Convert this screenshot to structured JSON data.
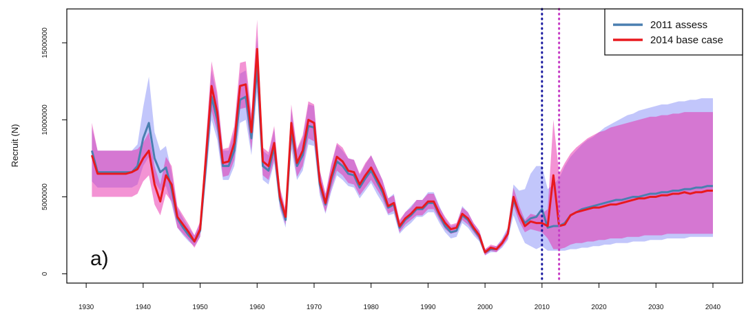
{
  "chart_data": {
    "type": "line-ribbon",
    "y_label": "Recruit (N)",
    "annotation": "a)",
    "x": [
      1931,
      1932,
      1933,
      1934,
      1935,
      1936,
      1937,
      1938,
      1939,
      1940,
      1941,
      1942,
      1943,
      1944,
      1945,
      1946,
      1947,
      1948,
      1949,
      1950,
      1951,
      1952,
      1953,
      1954,
      1955,
      1956,
      1957,
      1958,
      1959,
      1960,
      1961,
      1962,
      1963,
      1964,
      1965,
      1966,
      1967,
      1968,
      1969,
      1970,
      1971,
      1972,
      1973,
      1974,
      1975,
      1976,
      1977,
      1978,
      1979,
      1980,
      1981,
      1982,
      1983,
      1984,
      1985,
      1986,
      1987,
      1988,
      1989,
      1990,
      1991,
      1992,
      1993,
      1994,
      1995,
      1996,
      1997,
      1998,
      1999,
      2000,
      2001,
      2002,
      2003,
      2004,
      2005,
      2006,
      2007,
      2008,
      2009,
      2010,
      2011,
      2012,
      2013,
      2014,
      2015,
      2016,
      2017,
      2018,
      2019,
      2020,
      2021,
      2022,
      2023,
      2024,
      2025,
      2026,
      2027,
      2028,
      2029,
      2030,
      2031,
      2032,
      2033,
      2034,
      2035,
      2036,
      2037,
      2038,
      2039,
      2040
    ],
    "series": [
      {
        "name": "2011 assess",
        "color": "#4a7fb0",
        "ribbon_color": "rgba(110,120,245,0.42)",
        "values": [
          8000000.0,
          6600000.0,
          6600000.0,
          6600000.0,
          6600000.0,
          6600000.0,
          6600000.0,
          6600000.0,
          7000000.0,
          8800000.0,
          9800000.0,
          7500000.0,
          6600000.0,
          6900000.0,
          5500000.0,
          3600000.0,
          3000000.0,
          2500000.0,
          2100000.0,
          2800000.0,
          7000000.0,
          11500000.0,
          10000000.0,
          7000000.0,
          7000000.0,
          8000000.0,
          11300000.0,
          11500000.0,
          8800000.0,
          13500000.0,
          7000000.0,
          6700000.0,
          8200000.0,
          4800000.0,
          3500000.0,
          9300000.0,
          7000000.0,
          7700000.0,
          9600000.0,
          9500000.0,
          5800000.0,
          4500000.0,
          6100000.0,
          7300000.0,
          7000000.0,
          6500000.0,
          6400000.0,
          5600000.0,
          6200000.0,
          6700000.0,
          6000000.0,
          5300000.0,
          4300000.0,
          4500000.0,
          3000000.0,
          3500000.0,
          3800000.0,
          4200000.0,
          4200000.0,
          4600000.0,
          4600000.0,
          3800000.0,
          3100000.0,
          2700000.0,
          2800000.0,
          3800000.0,
          3500000.0,
          2900000.0,
          2400000.0,
          1400000.0,
          1600000.0,
          1600000.0,
          2000000.0,
          2600000.0,
          4800000.0,
          3900000.0,
          3300000.0,
          3600000.0,
          3700000.0,
          4200000.0,
          3000000.0,
          3100000.0,
          3100000.0,
          3300000.0,
          3800000.0,
          4000000.0,
          4200000.0,
          4300000.0,
          4400000.0,
          4500000.0,
          4600000.0,
          4700000.0,
          4800000.0,
          4800000.0,
          4900000.0,
          5000000.0,
          5000000.0,
          5100000.0,
          5200000.0,
          5200000.0,
          5300000.0,
          5300000.0,
          5400000.0,
          5400000.0,
          5500000.0,
          5500000.0,
          5600000.0,
          5600000.0,
          5700000.0,
          5700000.0
        ],
        "lower": [
          6000000.0,
          5600000.0,
          5600000.0,
          5600000.0,
          5600000.0,
          5600000.0,
          5600000.0,
          5600000.0,
          5800000.0,
          7000000.0,
          7600000.0,
          6000000.0,
          5400000.0,
          5700000.0,
          4500000.0,
          3000000.0,
          2500000.0,
          2100000.0,
          1800000.0,
          2400000.0,
          6000000.0,
          10000000.0,
          8700000.0,
          6100000.0,
          6100000.0,
          7000000.0,
          9800000.0,
          10000000.0,
          7700000.0,
          11800000.0,
          6100000.0,
          5800000.0,
          7200000.0,
          4200000.0,
          3000000.0,
          8100000.0,
          6100000.0,
          6700000.0,
          8400000.0,
          8300000.0,
          5100000.0,
          3900000.0,
          5300000.0,
          6400000.0,
          6100000.0,
          5700000.0,
          5600000.0,
          4900000.0,
          5400000.0,
          5900000.0,
          5200000.0,
          4600000.0,
          3800000.0,
          3900000.0,
          2600000.0,
          3000000.0,
          3300000.0,
          3700000.0,
          3700000.0,
          4000000.0,
          4000000.0,
          3300000.0,
          2700000.0,
          2300000.0,
          2400000.0,
          3300000.0,
          3000000.0,
          2500000.0,
          2100000.0,
          1200000.0,
          1400000.0,
          1400000.0,
          1700000.0,
          2200000.0,
          3800000.0,
          2800000.0,
          2000000.0,
          1800000.0,
          1600000.0,
          1800000.0,
          1500000.0,
          1500000.0,
          1500000.0,
          1500000.0,
          1600000.0,
          1600000.0,
          1700000.0,
          1700000.0,
          1800000.0,
          1800000.0,
          1900000.0,
          1900000.0,
          2000000.0,
          2000000.0,
          2000000.0,
          2100000.0,
          2100000.0,
          2100000.0,
          2200000.0,
          2200000.0,
          2200000.0,
          2300000.0,
          2300000.0,
          2300000.0,
          2300000.0,
          2400000.0,
          2400000.0,
          2400000.0,
          2400000.0,
          2400000.0
        ],
        "upper": [
          9500000.0,
          8000000.0,
          8000000.0,
          8000000.0,
          8000000.0,
          8000000.0,
          8000000.0,
          8000000.0,
          8400000.0,
          10800000.0,
          12800000.0,
          9200000.0,
          8000000.0,
          8300000.0,
          6600000.0,
          4300000.0,
          3600000.0,
          3000000.0,
          2500000.0,
          3300000.0,
          8100000.0,
          13200000.0,
          11500000.0,
          8000000.0,
          8000000.0,
          9200000.0,
          13000000.0,
          13200000.0,
          10100000.0,
          15500000.0,
          8000000.0,
          7700000.0,
          9400000.0,
          5500000.0,
          4000000.0,
          10700000.0,
          8000000.0,
          8800000.0,
          11000000.0,
          10900000.0,
          6700000.0,
          5200000.0,
          7000000.0,
          8400000.0,
          8000000.0,
          7500000.0,
          7400000.0,
          6400000.0,
          7100000.0,
          7700000.0,
          6900000.0,
          6100000.0,
          4900000.0,
          5200000.0,
          3400000.0,
          4000000.0,
          4400000.0,
          4800000.0,
          4800000.0,
          5300000.0,
          5300000.0,
          4400000.0,
          3600000.0,
          3100000.0,
          3200000.0,
          4400000.0,
          4000000.0,
          3300000.0,
          2800000.0,
          1600000.0,
          1800000.0,
          1800000.0,
          2300000.0,
          3000000.0,
          5800000.0,
          5400000.0,
          5500000.0,
          6500000.0,
          7000000.0,
          7000000.0,
          5500000.0,
          5800000.0,
          6200000.0,
          7000000.0,
          7600000.0,
          8000000.0,
          8400000.0,
          8700000.0,
          8900000.0,
          9200000.0,
          9500000.0,
          9700000.0,
          9900000.0,
          10100000.0,
          10300000.0,
          10400000.0,
          10600000.0,
          10700000.0,
          10800000.0,
          10900000.0,
          11000000.0,
          11000000.0,
          11100000.0,
          11200000.0,
          11200000.0,
          11300000.0,
          11300000.0,
          11400000.0,
          11400000.0,
          11400000.0
        ]
      },
      {
        "name": "2014 base case",
        "color": "#e8191e",
        "ribbon_color": "rgba(232,40,170,0.5)",
        "values": [
          7700000.0,
          6500000.0,
          6500000.0,
          6500000.0,
          6500000.0,
          6500000.0,
          6500000.0,
          6600000.0,
          6800000.0,
          7500000.0,
          8000000.0,
          5800000.0,
          4700000.0,
          6400000.0,
          5800000.0,
          3700000.0,
          3200000.0,
          2700000.0,
          2100000.0,
          2900000.0,
          7500000.0,
          12200000.0,
          10500000.0,
          7200000.0,
          7300000.0,
          8500000.0,
          12200000.0,
          12300000.0,
          9200000.0,
          14600000.0,
          7300000.0,
          7000000.0,
          8500000.0,
          5000000.0,
          3700000.0,
          9800000.0,
          7200000.0,
          8000000.0,
          10000000.0,
          9800000.0,
          6000000.0,
          4600000.0,
          6300000.0,
          7600000.0,
          7300000.0,
          6700000.0,
          6600000.0,
          5800000.0,
          6400000.0,
          6900000.0,
          6200000.0,
          5500000.0,
          4400000.0,
          4600000.0,
          3100000.0,
          3600000.0,
          3900000.0,
          4300000.0,
          4300000.0,
          4700000.0,
          4700000.0,
          3900000.0,
          3300000.0,
          2900000.0,
          3000000.0,
          3900000.0,
          3600000.0,
          3000000.0,
          2500000.0,
          1400000.0,
          1700000.0,
          1600000.0,
          2000000.0,
          2600000.0,
          5000000.0,
          3900000.0,
          3100000.0,
          3400000.0,
          3300000.0,
          3300000.0,
          3100000.0,
          6400000.0,
          3100000.0,
          3200000.0,
          3800000.0,
          4000000.0,
          4100000.0,
          4200000.0,
          4300000.0,
          4300000.0,
          4400000.0,
          4500000.0,
          4500000.0,
          4600000.0,
          4700000.0,
          4800000.0,
          4900000.0,
          4900000.0,
          5000000.0,
          5000000.0,
          5100000.0,
          5100000.0,
          5200000.0,
          5200000.0,
          5300000.0,
          5200000.0,
          5300000.0,
          5300000.0,
          5400000.0,
          5400000.0
        ],
        "lower": [
          5000000.0,
          5000000.0,
          5000000.0,
          5000000.0,
          5000000.0,
          5000000.0,
          5000000.0,
          5000000.0,
          5200000.0,
          6000000.0,
          6400000.0,
          4500000.0,
          3800000.0,
          5200000.0,
          4700000.0,
          3000000.0,
          2600000.0,
          2200000.0,
          1700000.0,
          2400000.0,
          6400000.0,
          10600000.0,
          9200000.0,
          6300000.0,
          6400000.0,
          7400000.0,
          10700000.0,
          10800000.0,
          8000000.0,
          12700000.0,
          6400000.0,
          6100000.0,
          7400000.0,
          4400000.0,
          3200000.0,
          8600000.0,
          6300000.0,
          7000000.0,
          8800000.0,
          8600000.0,
          5300000.0,
          4000000.0,
          5500000.0,
          6700000.0,
          6400000.0,
          5900000.0,
          5800000.0,
          5100000.0,
          5600000.0,
          6100000.0,
          5500000.0,
          4900000.0,
          3900000.0,
          4100000.0,
          2700000.0,
          3200000.0,
          3500000.0,
          3800000.0,
          3800000.0,
          4200000.0,
          4200000.0,
          3500000.0,
          2900000.0,
          2600000.0,
          2700000.0,
          3500000.0,
          3200000.0,
          2700000.0,
          2200000.0,
          1200000.0,
          1500000.0,
          1400000.0,
          1800000.0,
          2300000.0,
          4400000.0,
          3400000.0,
          2700000.0,
          2900000.0,
          2800000.0,
          2700000.0,
          2300000.0,
          1600000.0,
          1600000.0,
          1700000.0,
          1900000.0,
          2000000.0,
          2000000.0,
          2100000.0,
          2100000.0,
          2200000.0,
          2200000.0,
          2300000.0,
          2300000.0,
          2300000.0,
          2400000.0,
          2400000.0,
          2400000.0,
          2500000.0,
          2500000.0,
          2500000.0,
          2500000.0,
          2600000.0,
          2600000.0,
          2600000.0,
          2600000.0,
          2600000.0,
          2600000.0,
          2600000.0,
          2600000.0,
          2600000.0
        ],
        "upper": [
          9800000.0,
          8000000.0,
          8000000.0,
          8000000.0,
          8000000.0,
          8000000.0,
          8000000.0,
          8000000.0,
          8100000.0,
          8500000.0,
          9200000.0,
          7000000.0,
          5800000.0,
          7600000.0,
          7000000.0,
          4400000.0,
          3800000.0,
          3200000.0,
          2500000.0,
          3400000.0,
          8600000.0,
          13800000.0,
          11800000.0,
          8100000.0,
          8200000.0,
          9600000.0,
          13700000.0,
          13800000.0,
          10400000.0,
          16500000.0,
          8200000.0,
          7900000.0,
          9600000.0,
          5600000.0,
          4200000.0,
          11000000.0,
          8100000.0,
          9000000.0,
          11200000.0,
          11000000.0,
          6700000.0,
          5200000.0,
          7100000.0,
          8500000.0,
          8200000.0,
          7500000.0,
          7400000.0,
          6500000.0,
          7200000.0,
          7700000.0,
          6900000.0,
          6100000.0,
          4900000.0,
          5100000.0,
          3500000.0,
          4000000.0,
          4300000.0,
          4800000.0,
          4800000.0,
          5200000.0,
          5200000.0,
          4300000.0,
          3700000.0,
          3200000.0,
          3300000.0,
          4300000.0,
          4000000.0,
          3300000.0,
          2800000.0,
          1600000.0,
          1900000.0,
          1800000.0,
          2200000.0,
          2900000.0,
          5600000.0,
          4400000.0,
          3500000.0,
          3900000.0,
          3800000.0,
          3900000.0,
          4200000.0,
          10000000.0,
          6500000.0,
          7200000.0,
          7800000.0,
          8200000.0,
          8500000.0,
          8800000.0,
          9000000.0,
          9200000.0,
          9300000.0,
          9500000.0,
          9600000.0,
          9700000.0,
          9800000.0,
          9900000.0,
          10000000.0,
          10100000.0,
          10200000.0,
          10200000.0,
          10300000.0,
          10300000.0,
          10400000.0,
          10400000.0,
          10500000.0,
          10500000.0,
          10500000.0,
          10500000.0,
          10500000.0,
          10500000.0
        ]
      }
    ],
    "vlines": [
      {
        "x": 2010,
        "color": "#1a1aa0"
      },
      {
        "x": 2013,
        "color": "#c53bc5"
      }
    ],
    "xlim": [
      1926.6,
      2045.2
    ],
    "xticks": [
      1930,
      1940,
      1950,
      1960,
      1970,
      1980,
      1990,
      2000,
      2010,
      2020,
      2030,
      2040
    ],
    "ylim": [
      -600000,
      17200000
    ],
    "yticks": [
      0,
      5000000,
      10000000,
      15000000
    ],
    "legend": "top-right"
  }
}
